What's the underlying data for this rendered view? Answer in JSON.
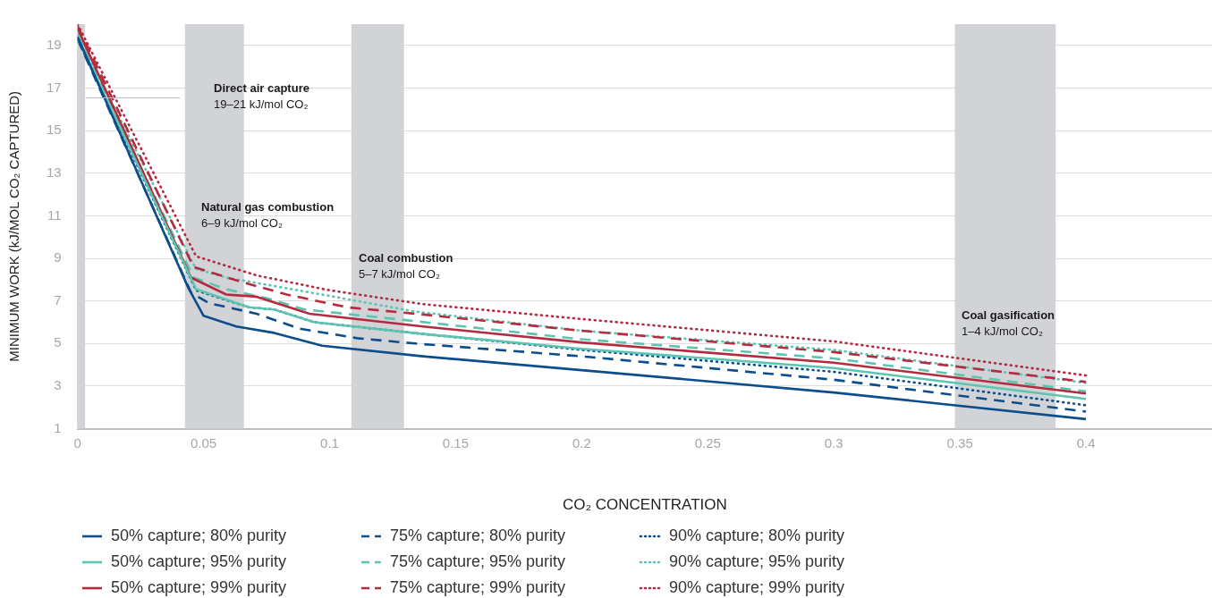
{
  "chart_data": {
    "type": "line",
    "xlabel": "CO₂ CONCENTRATION",
    "ylabel": "MINIMUM WORK (kJ/MOL CO₂ CAPTURED)",
    "xlim": [
      0,
      0.45
    ],
    "xticks": [
      0,
      0.05,
      0.1,
      0.15,
      0.2,
      0.25,
      0.3,
      0.35,
      0.4
    ],
    "ylim": [
      1,
      20
    ],
    "yticks": [
      1,
      3,
      5,
      7,
      9,
      11,
      13,
      15,
      17,
      19
    ],
    "grid": "y",
    "legend": "bottom",
    "marker": "none",
    "annotations": [
      "Direct air capture\n19–21 kJ/mol CO₂"
    ],
    "bands": [
      {
        "axis": "x",
        "from": 0,
        "to": 0.003,
        "color": "#d1d3d6"
      },
      {
        "axis": "x",
        "from": 0.0426,
        "to": 0.066,
        "label": "Natural gas combustion\n6–9 kJ/mol CO₂",
        "color": "#d1d3d6"
      },
      {
        "axis": "x",
        "from": 0.1086,
        "to": 0.1295,
        "label": "Coal combustion\n5–7 kJ/mol CO₂",
        "color": "#d1d3d6"
      },
      {
        "axis": "x",
        "from": 0.348,
        "to": 0.388,
        "label": "Coal gasification\n1–4 kJ/mol CO₂",
        "color": "#d1d3d6"
      }
    ],
    "series": [
      {
        "name": "50% capture; 80% purity",
        "color": "#0c4d8c",
        "line_style": "solid",
        "x": [
          0,
          0.044,
          0.05,
          0.063,
          0.078,
          0.097,
          0.137,
          0.2,
          0.3,
          0.4
        ],
        "values": [
          19.4,
          7.6,
          6.3,
          5.8,
          5.5,
          4.9,
          4.4,
          3.75,
          2.7,
          1.45
        ]
      },
      {
        "name": "50% capture; 95% purity",
        "color": "#5cc4b0",
        "line_style": "solid",
        "x": [
          0,
          0.047,
          0.068,
          0.078,
          0.094,
          0.137,
          0.2,
          0.3,
          0.4
        ],
        "values": [
          19.4,
          7.55,
          6.7,
          6.6,
          6.0,
          5.45,
          4.75,
          3.85,
          2.4
        ]
      },
      {
        "name": "50% capture; 99% purity",
        "color": "#b42b3f",
        "line_style": "solid",
        "x": [
          0,
          0.045,
          0.059,
          0.071,
          0.092,
          0.137,
          0.2,
          0.3,
          0.4
        ],
        "values": [
          19.8,
          8.1,
          7.3,
          7.2,
          6.4,
          5.8,
          5.05,
          4.1,
          2.65
        ]
      },
      {
        "name": "75% capture; 80% purity",
        "color": "#0c4d8c",
        "line_style": "dashed",
        "x": [
          0,
          0.045,
          0.052,
          0.071,
          0.088,
          0.111,
          0.134,
          0.2,
          0.3,
          0.4
        ],
        "values": [
          19.3,
          7.4,
          6.9,
          6.4,
          5.7,
          5.25,
          5.0,
          4.4,
          3.3,
          1.8
        ]
      },
      {
        "name": "75% capture; 95% purity",
        "color": "#5cc4b0",
        "line_style": "dashed",
        "x": [
          0,
          0.046,
          0.059,
          0.076,
          0.09,
          0.13,
          0.2,
          0.3,
          0.4
        ],
        "values": [
          19.5,
          8.1,
          7.55,
          7.1,
          6.6,
          6.1,
          5.2,
          4.3,
          2.75
        ]
      },
      {
        "name": "75% capture; 99% purity",
        "color": "#b42b3f",
        "line_style": "dashed",
        "x": [
          0,
          0.046,
          0.062,
          0.083,
          0.107,
          0.134,
          0.2,
          0.3,
          0.4
        ],
        "values": [
          19.9,
          8.6,
          8.0,
          7.3,
          6.7,
          6.4,
          5.6,
          4.6,
          3.2
        ]
      },
      {
        "name": "90% capture; 80% purity",
        "color": "#0c4d8c",
        "line_style": "dotted",
        "x": [
          0,
          0.047,
          0.068,
          0.078,
          0.094,
          0.137,
          0.2,
          0.3,
          0.4
        ],
        "values": [
          19.3,
          7.5,
          6.7,
          6.6,
          6.0,
          5.45,
          4.7,
          3.67,
          2.1
        ]
      },
      {
        "name": "90% capture; 95% purity",
        "color": "#5cc4b0",
        "line_style": "dotted",
        "x": [
          0,
          0.047,
          0.059,
          0.097,
          0.134,
          0.2,
          0.3,
          0.4
        ],
        "values": [
          19.5,
          8.5,
          8.1,
          7.3,
          6.5,
          5.6,
          4.7,
          3.15
        ]
      },
      {
        "name": "90% capture; 99% purity",
        "color": "#b42b3f",
        "line_style": "dotted",
        "x": [
          0,
          0.047,
          0.071,
          0.1,
          0.137,
          0.2,
          0.3,
          0.4
        ],
        "values": [
          20.0,
          9.1,
          8.2,
          7.5,
          6.85,
          6.15,
          5.1,
          3.5
        ]
      }
    ]
  }
}
